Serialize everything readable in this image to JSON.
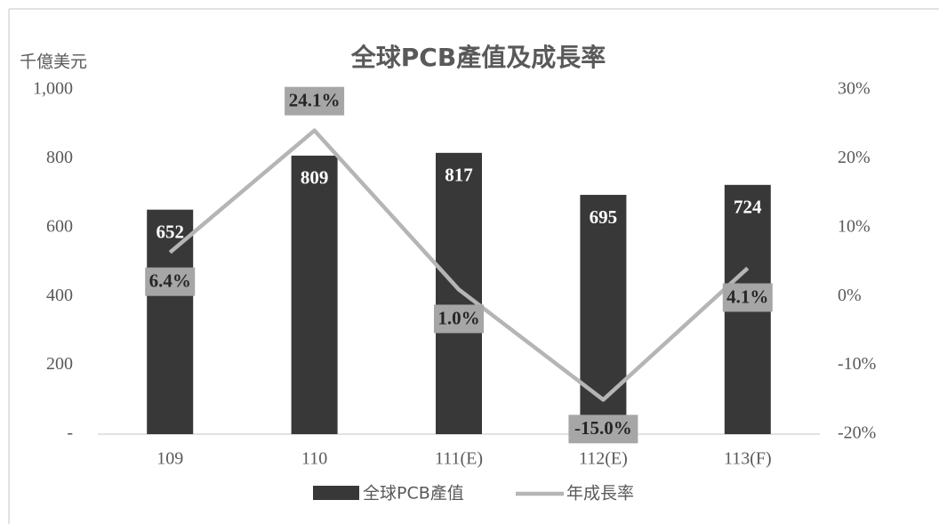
{
  "chart_data": {
    "type": "bar",
    "title": "全球PCB產值及成長率",
    "y_label": "千億美元",
    "categories": [
      "109",
      "110",
      "111(E)",
      "112(E)",
      "113(F)"
    ],
    "series": [
      {
        "name": "全球PCB產值",
        "color": "#383838",
        "values": [
          652,
          809,
          817,
          695,
          724
        ]
      },
      {
        "name": "年成長率",
        "color": "#b5b5b5",
        "type": "line",
        "axis": "y2",
        "values": [
          6.4,
          24.1,
          1.0,
          -15.0,
          4.1
        ],
        "value_labels": [
          "6.4%",
          "24.1%",
          "1.0%",
          "-15.0%",
          "4.1%"
        ]
      }
    ],
    "ylim": [
      0,
      1000
    ],
    "yticks": [
      {
        "value": 0,
        "label": "-"
      },
      200,
      400,
      600,
      800,
      {
        "value": 1000,
        "label": "1,000"
      }
    ],
    "y2lim": [
      -20,
      30
    ],
    "y2ticks": [
      {
        "value": -20,
        "label": "-20%"
      },
      {
        "value": -10,
        "label": "-10%"
      },
      {
        "value": 0,
        "label": "0%"
      },
      {
        "value": 10,
        "label": "10%"
      },
      {
        "value": 20,
        "label": "20%"
      },
      {
        "value": 30,
        "label": "30%"
      }
    ],
    "legend": "bottom"
  }
}
